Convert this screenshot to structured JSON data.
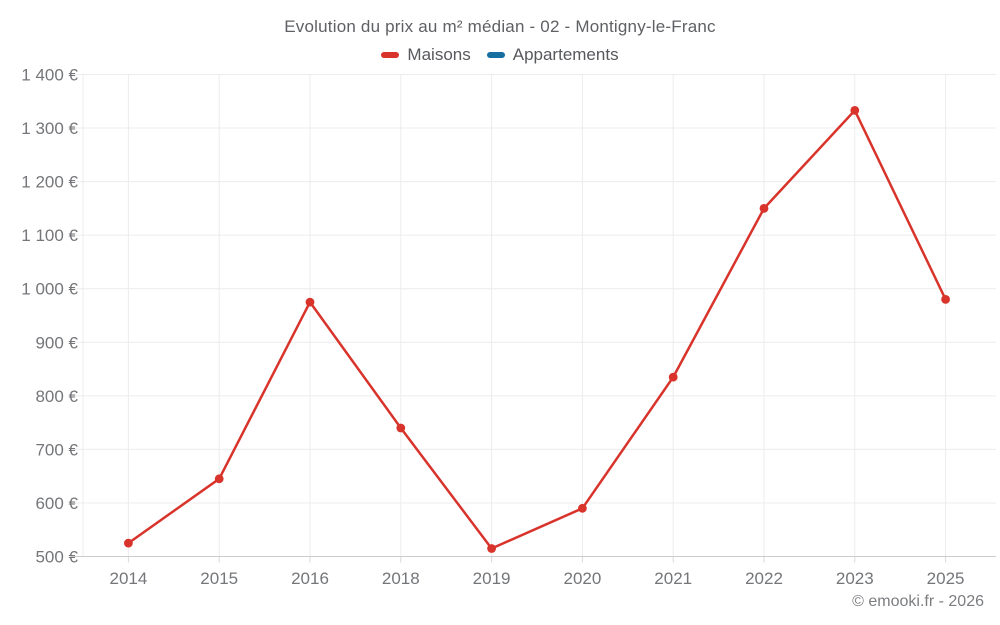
{
  "footer": {
    "credit": "© emooki.fr - 2026"
  },
  "chart_data": {
    "type": "line",
    "title": "Evolution du prix au m² médian - 02 - Montigny-le-Franc",
    "categories": [
      "2014",
      "2015",
      "2016",
      "2018",
      "2019",
      "2020",
      "2021",
      "2022",
      "2023",
      "2025"
    ],
    "series": [
      {
        "name": "Maisons",
        "color": "#d8342c",
        "values": [
          525,
          645,
          975,
          740,
          515,
          590,
          835,
          1150,
          1333,
          980
        ]
      },
      {
        "name": "Appartements",
        "color": "#176fa1",
        "values": []
      }
    ],
    "xlabel": "",
    "ylabel": "",
    "ylim": [
      500,
      1400
    ],
    "ytick_step": 100,
    "ytick_labels": [
      "500 €",
      "600 €",
      "700 €",
      "800 €",
      "900 €",
      "1 000 €",
      "1 100 €",
      "1 200 €",
      "1 300 €",
      "1 400 €"
    ],
    "y_suffix": " €",
    "grid": true,
    "legend_position": "top"
  }
}
